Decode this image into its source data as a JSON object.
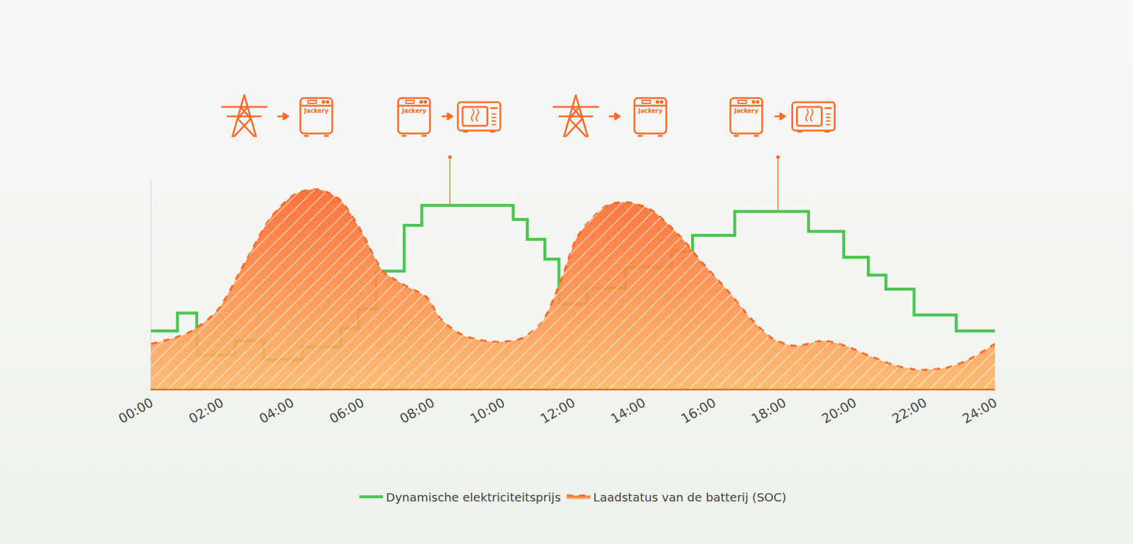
{
  "chart_data": {
    "type": "line",
    "series": [
      {
        "name": "Dynamische elektriciteitsprijs",
        "color": "#4cc552",
        "type": "step",
        "line_style": "solid",
        "x": [
          0,
          0.75,
          1.3,
          2.4,
          3.2,
          4.3,
          5.4,
          5.9,
          6.4,
          7.2,
          7.7,
          10.3,
          10.7,
          11.2,
          11.6,
          12.4,
          13.5,
          14.8,
          15.4,
          16.6,
          18.7,
          19.7,
          20.4,
          20.9,
          21.7,
          22.9,
          24
        ],
        "values": [
          29,
          38,
          17,
          24,
          14.5,
          21,
          30.5,
          40,
          59,
          82,
          92,
          85,
          75,
          65,
          42.5,
          50.5,
          61,
          69,
          77,
          89,
          79,
          66,
          57,
          50,
          37,
          29,
          29
        ]
      },
      {
        "name": "Laadstatus van de batterij (SOC)",
        "color": "#ff6a2a",
        "type": "area",
        "line_style": "dash",
        "x": [
          0,
          1.05,
          1.87,
          2.69,
          3.41,
          4.13,
          4.75,
          5.36,
          5.98,
          6.6,
          7.21,
          7.83,
          8.24,
          8.85,
          9.68,
          10.5,
          11.1,
          11.63,
          12.15,
          12.97,
          13.58,
          14.2,
          15.02,
          15.64,
          16.46,
          17.07,
          17.69,
          18.31,
          19.13,
          19.75,
          20.36,
          21.18,
          21.8,
          22.62,
          23.24,
          24
        ],
        "values": [
          22.5,
          28,
          39,
          64,
          86,
          98,
          100,
          95,
          79,
          59,
          52,
          46,
          35,
          27,
          23.6,
          25,
          33,
          53,
          77,
          92,
          93.5,
          90,
          77,
          64,
          48,
          35,
          25,
          21.5,
          24,
          21.5,
          17,
          11.6,
          9.5,
          10.5,
          14.5,
          22.5
        ]
      }
    ],
    "xlim": [
      0,
      24
    ],
    "xticks": [
      {
        "value": 0,
        "label": "00:00"
      },
      {
        "value": 2,
        "label": "02:00"
      },
      {
        "value": 4,
        "label": "04:00"
      },
      {
        "value": 6,
        "label": "06:00"
      },
      {
        "value": 8,
        "label": "08:00"
      },
      {
        "value": 10,
        "label": "10:00"
      },
      {
        "value": 12,
        "label": "12:00"
      },
      {
        "value": 14,
        "label": "14:00"
      },
      {
        "value": 16,
        "label": "16:00"
      },
      {
        "value": 18,
        "label": "18:00"
      },
      {
        "value": 20,
        "label": "20:00"
      },
      {
        "value": 22,
        "label": "22:00"
      },
      {
        "value": 24,
        "label": "24:00"
      }
    ],
    "ylim": [
      0,
      105
    ],
    "grid": false,
    "tick_labels": "x",
    "legend": "bottom",
    "annotations": [
      "Jackery",
      "Jackery",
      "Jackery",
      "Jackery"
    ]
  }
}
